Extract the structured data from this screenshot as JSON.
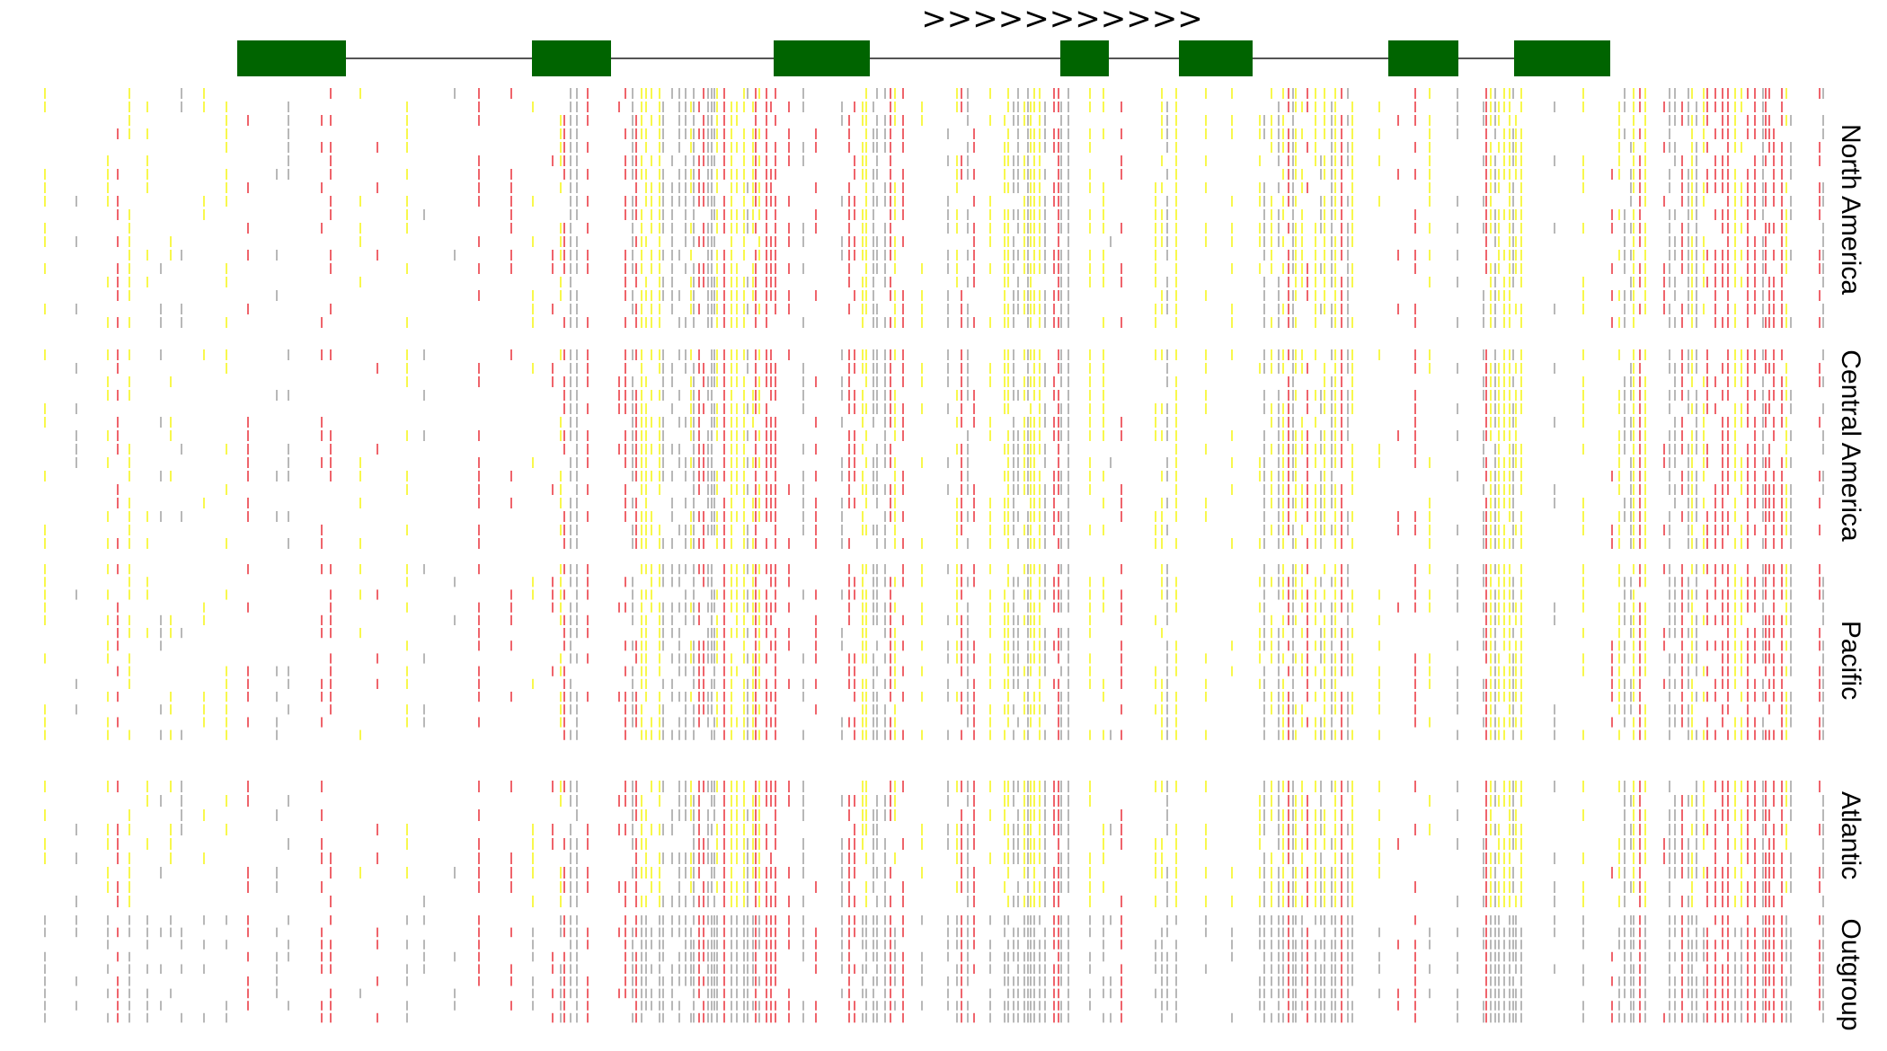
{
  "figure": {
    "strand_text": ">>>>>>>>>>>",
    "colors": {
      "exon": "#006400",
      "intron_line": "#555555",
      "variant_red": "#e8222c",
      "variant_yellow": "#f5f500",
      "variant_gray": "#9a9a9a",
      "background": "#ffffff"
    }
  },
  "gene_model": {
    "exon_count": 7,
    "intron_count": 6
  },
  "groups": [
    {
      "label": "North America",
      "samples": 18
    },
    {
      "label": "Central America",
      "samples": 15
    },
    {
      "label": "Pacific",
      "samples": 14
    },
    {
      "label": "Atlantic",
      "samples": 9
    },
    {
      "label": "Outgroup",
      "samples": 9
    }
  ]
}
